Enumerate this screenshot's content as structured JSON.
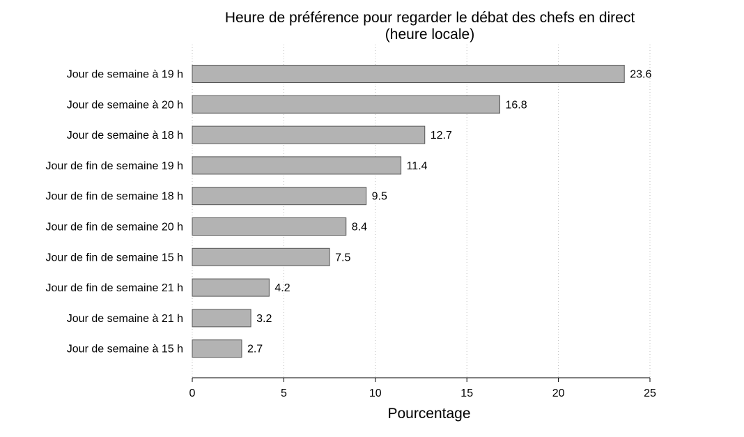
{
  "chart_data": {
    "type": "bar",
    "orientation": "horizontal",
    "title": "Heure de préférence pour regarder le débat des chefs en direct",
    "subtitle": "(heure locale)",
    "xlabel": "Pourcentage",
    "ylabel": "",
    "xlim": [
      0,
      25
    ],
    "xticks": [
      0,
      5,
      10,
      15,
      20,
      25
    ],
    "grid": "vertical dotted",
    "bar_color": "#b3b3b3",
    "categories": [
      "Jour de semaine à 19 h",
      "Jour de semaine à 20 h",
      "Jour de semaine à 18 h",
      "Jour de fin de semaine 19 h",
      "Jour de fin de semaine 18 h",
      "Jour de fin de semaine 20 h",
      "Jour de fin de semaine 15 h",
      "Jour de fin de semaine 21 h",
      "Jour de semaine à 21 h",
      "Jour de semaine à 15 h"
    ],
    "values": [
      23.6,
      16.8,
      12.7,
      11.4,
      9.5,
      8.4,
      7.5,
      4.2,
      3.2,
      2.7
    ],
    "value_labels": [
      "23.6",
      "16.8",
      "12.7",
      "11.4",
      "9.5",
      "8.4",
      "7.5",
      "4.2",
      "3.2",
      "2.7"
    ]
  }
}
